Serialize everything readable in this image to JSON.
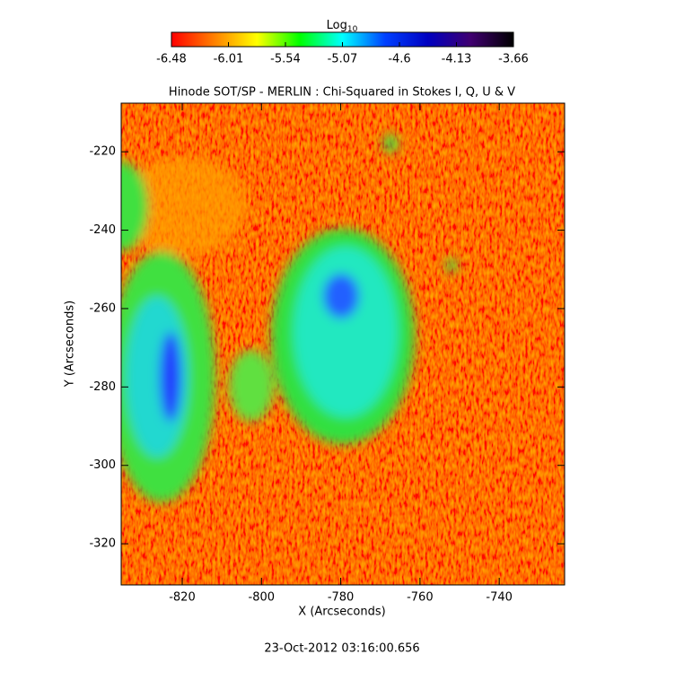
{
  "chart_data": {
    "type": "heatmap",
    "title": "Hinode SOT/SP - MERLIN : Chi-Squared in Stokes I, Q, U & V",
    "xlabel": "X (Arcseconds)",
    "ylabel": "Y (Arcseconds)",
    "xlim": [
      -835.4,
      -723.5
    ],
    "xticks": [
      -820,
      -800,
      -780,
      -760,
      -740
    ],
    "ylim": [
      -330.5,
      -207.6
    ],
    "yticks": [
      -220,
      -240,
      -260,
      -280,
      -300,
      -320
    ],
    "colorbar_label": "Log",
    "colorbar_label_subscript": "10",
    "clim": [
      -6.48,
      -3.66
    ],
    "cticks": [
      -6.48,
      -6.01,
      -5.54,
      -5.07,
      -4.6,
      -4.13,
      -3.66
    ],
    "colormap": [
      "#ff0000",
      "#ff8000",
      "#ffff00",
      "#00ff00",
      "#00ffff",
      "#0040ff",
      "#0000c0",
      "#400070",
      "#000000"
    ],
    "footer": "23-Oct-2012 03:16:00.656"
  }
}
